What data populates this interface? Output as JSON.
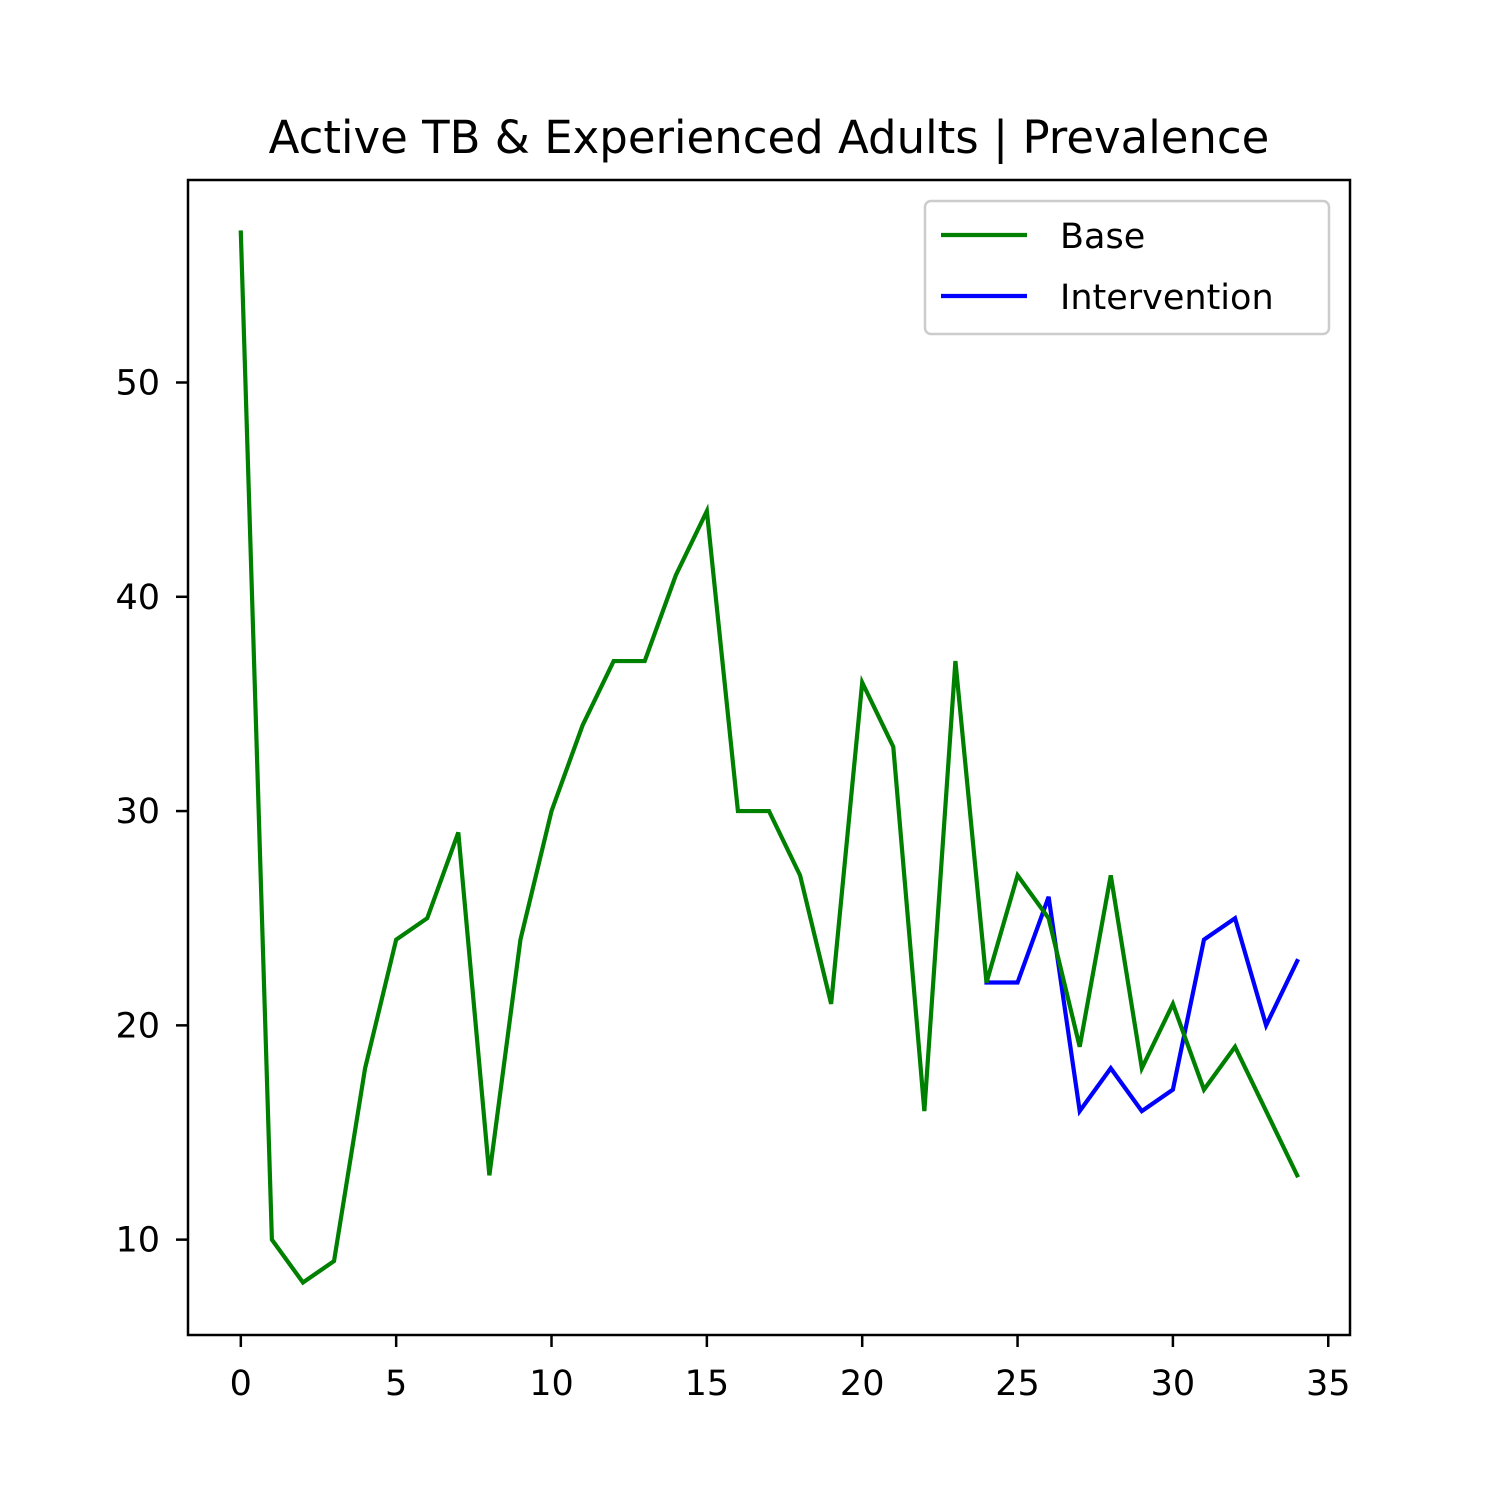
{
  "chart_data": {
    "type": "line",
    "title": "Active TB & Experienced Adults | Prevalence",
    "xlabel": "",
    "ylabel": "",
    "xlim": [
      -1.7,
      35.7
    ],
    "ylim": [
      5.55,
      59.45
    ],
    "x_ticks": [
      0,
      5,
      10,
      15,
      20,
      25,
      30,
      35
    ],
    "y_ticks": [
      10,
      20,
      30,
      40,
      50
    ],
    "grid": false,
    "legend": "upper right",
    "series": [
      {
        "name": "Intervention",
        "color": "#0000ff",
        "x": [
          24,
          25,
          26,
          27,
          28,
          29,
          30,
          31,
          32,
          33,
          34
        ],
        "values": [
          22,
          22,
          26,
          16,
          18,
          16,
          17,
          24,
          25,
          20,
          23
        ]
      },
      {
        "name": "Base",
        "color": "#008000",
        "x": [
          0,
          1,
          2,
          3,
          4,
          5,
          6,
          7,
          8,
          9,
          10,
          11,
          12,
          13,
          14,
          15,
          16,
          17,
          18,
          19,
          20,
          21,
          22,
          23,
          24,
          25,
          26,
          27,
          28,
          29,
          30,
          31,
          32,
          33,
          34
        ],
        "values": [
          57,
          10,
          8,
          9,
          18,
          24,
          25,
          29,
          13,
          24,
          30,
          34,
          37,
          37,
          41,
          44,
          30,
          30,
          27,
          21,
          36,
          33,
          16,
          37,
          22,
          27,
          25,
          19,
          27,
          18,
          21,
          17,
          19,
          16,
          13
        ]
      }
    ],
    "legend_entries": [
      {
        "label": "Base",
        "color": "#008000"
      },
      {
        "label": "Intervention",
        "color": "#0000ff"
      }
    ]
  }
}
